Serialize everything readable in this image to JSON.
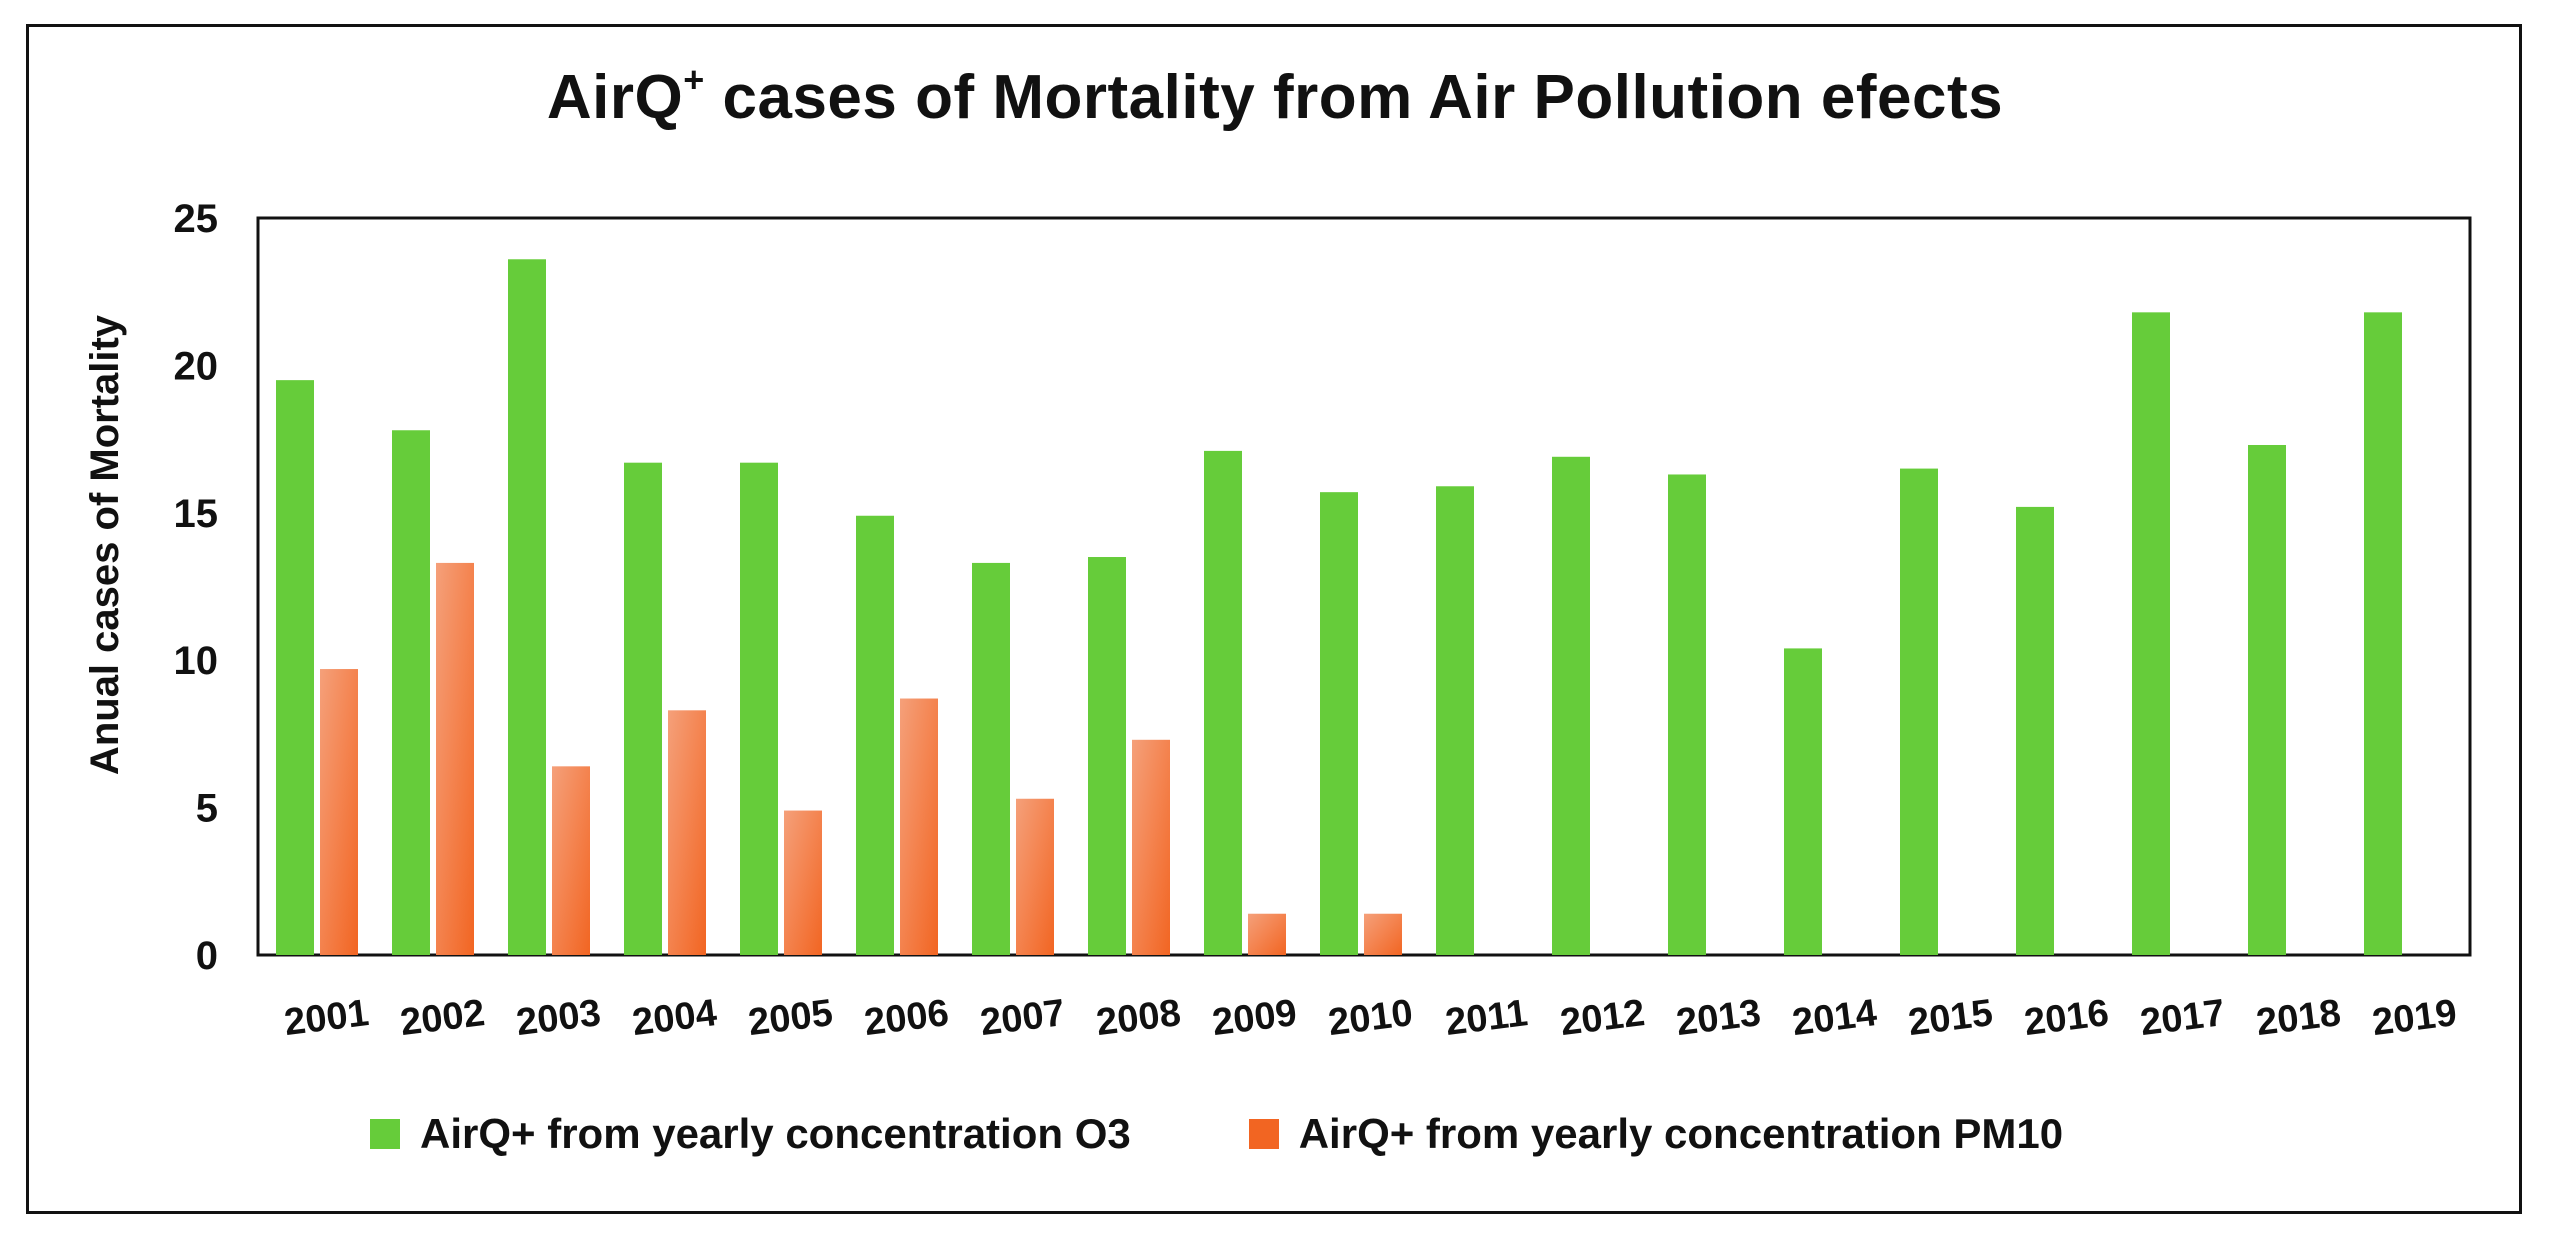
{
  "chart_data": {
    "type": "bar",
    "title_main": "AirQ",
    "title_sup": "+",
    "title_rest": " cases of Mortality from Air Pollution efects",
    "ylabel": "Anual cases of Mortality",
    "xlabel": "",
    "ylim": [
      0,
      25
    ],
    "yticks": [
      0,
      5,
      10,
      15,
      20,
      25
    ],
    "categories": [
      "2001",
      "2002",
      "2003",
      "2004",
      "2005",
      "2006",
      "2007",
      "2008",
      "2009",
      "2010",
      "2011",
      "2012",
      "2013",
      "2014",
      "2015",
      "2016",
      "2017",
      "2018",
      "2019"
    ],
    "series": [
      {
        "name": "AirQ+ from yearly concentration O3",
        "color": "#66cc3a",
        "values": [
          19.5,
          17.8,
          23.6,
          16.7,
          16.7,
          14.9,
          13.3,
          13.5,
          17.1,
          15.7,
          15.9,
          16.9,
          16.3,
          10.4,
          16.5,
          15.2,
          21.8,
          17.3,
          21.8
        ]
      },
      {
        "name": "AirQ+ from yearly concentration PM10",
        "color": "#f26522",
        "values": [
          9.7,
          13.3,
          6.4,
          8.3,
          4.9,
          8.7,
          5.3,
          7.3,
          1.4,
          1.4,
          null,
          null,
          null,
          null,
          null,
          null,
          null,
          null,
          null
        ]
      }
    ],
    "legend_position": "bottom",
    "grid": false
  }
}
